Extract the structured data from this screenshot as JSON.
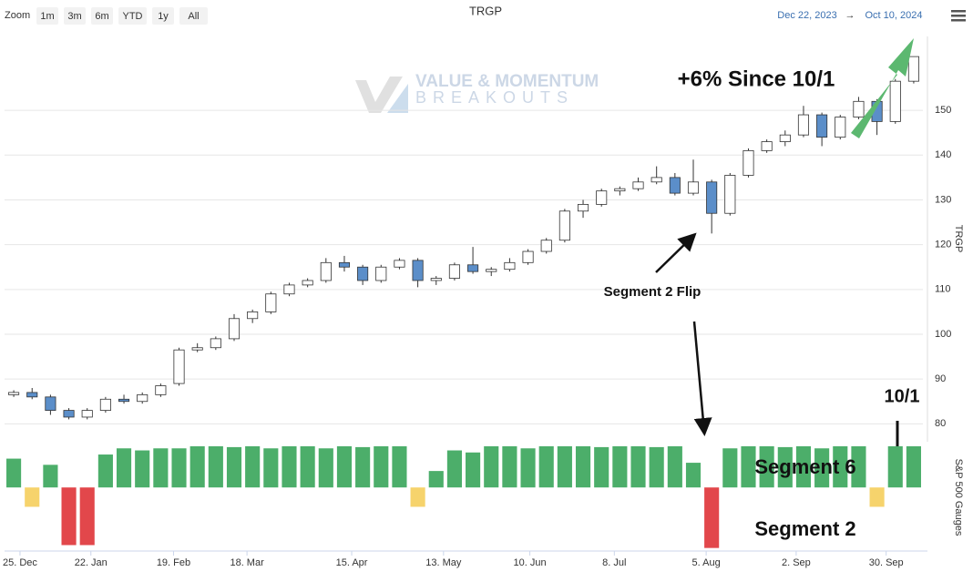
{
  "toolbar": {
    "zoom_label": "Zoom",
    "buttons": [
      "1m",
      "3m",
      "6m",
      "YTD",
      "1y",
      "All"
    ],
    "date_from": "Dec 22, 2023",
    "date_arrow": "→",
    "date_to": "Oct 10, 2024"
  },
  "watermark": {
    "line1": "VALUE & MOMENTUM",
    "line2": "BREAKOUTS"
  },
  "chart_data": [
    {
      "type": "candlestick",
      "title": "TRGP",
      "y_label": "TRGP",
      "open": [
        86.5,
        87,
        86,
        83,
        81.5,
        83,
        85.5,
        85,
        86.5,
        89,
        96.5,
        97,
        99,
        103.5,
        105,
        109,
        111,
        112,
        116,
        115,
        112,
        115,
        116.5,
        112,
        112.5,
        115.5,
        114,
        114.5,
        116,
        118.5,
        121,
        127.5,
        129,
        132,
        132.5,
        134,
        135,
        131.5,
        134,
        127,
        135.5,
        141,
        143,
        144.5,
        149,
        144,
        148.5,
        152,
        147.5,
        156.5
      ],
      "high": [
        87.5,
        88,
        86.5,
        83.5,
        83.5,
        86,
        86.5,
        87,
        89,
        97,
        98,
        99.5,
        104.5,
        105.5,
        109.5,
        111.5,
        112.5,
        117,
        117.5,
        115.5,
        115.5,
        117,
        117,
        113,
        116,
        119.5,
        115,
        117,
        119,
        121.5,
        128,
        130,
        132.5,
        133,
        135,
        137.5,
        136,
        139,
        134.5,
        136,
        141.5,
        143.5,
        145.5,
        151,
        149.5,
        149,
        153,
        152.5,
        157,
        162
      ],
      "low": [
        86,
        85.5,
        82,
        81,
        81,
        82.5,
        84.5,
        84.5,
        86,
        88.5,
        96,
        96.5,
        98.5,
        102.5,
        104.5,
        108.5,
        110.5,
        111.5,
        114,
        111,
        111.5,
        114.5,
        110.5,
        111,
        112,
        113.5,
        113,
        114,
        115.5,
        118,
        120.5,
        126,
        128.5,
        131,
        132,
        133.5,
        131,
        131,
        122.5,
        126.5,
        135,
        140.5,
        142,
        144,
        142,
        143.5,
        148,
        144.5,
        147,
        156
      ],
      "close": [
        87,
        86,
        83,
        81.5,
        83,
        85.5,
        85,
        86.5,
        88.5,
        96.5,
        97,
        99,
        103.5,
        105,
        109,
        111,
        112,
        116,
        115,
        112,
        115,
        116.5,
        112,
        112.5,
        115.5,
        114,
        114.5,
        116,
        118.5,
        121,
        127.5,
        129,
        132,
        132.5,
        134,
        135,
        131.5,
        134,
        127,
        135.5,
        141,
        143,
        144.5,
        149,
        144,
        148.5,
        152,
        147.5,
        156.5,
        162
      ],
      "up_color": "#ffffff",
      "down_color": "#5b8ec9",
      "ylim": [
        76,
        166.5
      ],
      "yticks": [
        80,
        90,
        100,
        110,
        120,
        130,
        140,
        150
      ],
      "grid": true,
      "annotations": [
        "+6% Since 10/1",
        "Segment 2 Flip",
        "Segment 6",
        "Segment 2",
        "10/1"
      ]
    },
    {
      "type": "bar",
      "y_label": "S&P 500 Gauges",
      "values": [
        70,
        -47,
        55,
        -140,
        -140,
        80,
        95,
        90,
        95,
        95,
        100,
        100,
        98,
        100,
        95,
        100,
        100,
        95,
        100,
        98,
        100,
        100,
        -47,
        40,
        90,
        85,
        100,
        100,
        95,
        100,
        100,
        100,
        98,
        100,
        100,
        98,
        100,
        60,
        -147,
        95,
        100,
        100,
        98,
        100,
        95,
        100,
        100,
        -47,
        100,
        100
      ],
      "color": "#4cae6a",
      "neutral_color": "#f6d36c",
      "negative_color": "#e2474b",
      "ylim": [
        -150,
        100
      ],
      "xlim": [
        -0.5,
        49.5
      ],
      "xticks": [
        {
          "value": 0.34,
          "label": "25. Dec"
        },
        {
          "value": 4.2,
          "label": "22. Jan"
        },
        {
          "value": 8.7,
          "label": "19. Feb"
        },
        {
          "value": 12.7,
          "label": "18. Mar"
        },
        {
          "value": 18.4,
          "label": "15. Apr"
        },
        {
          "value": 23.4,
          "label": "13. May"
        },
        {
          "value": 28.1,
          "label": "10. Jun"
        },
        {
          "value": 32.7,
          "label": "8. Jul"
        },
        {
          "value": 37.7,
          "label": "5. Aug"
        },
        {
          "value": 42.6,
          "label": "2. Sep"
        },
        {
          "value": 47.5,
          "label": "30. Sep"
        }
      ]
    }
  ]
}
